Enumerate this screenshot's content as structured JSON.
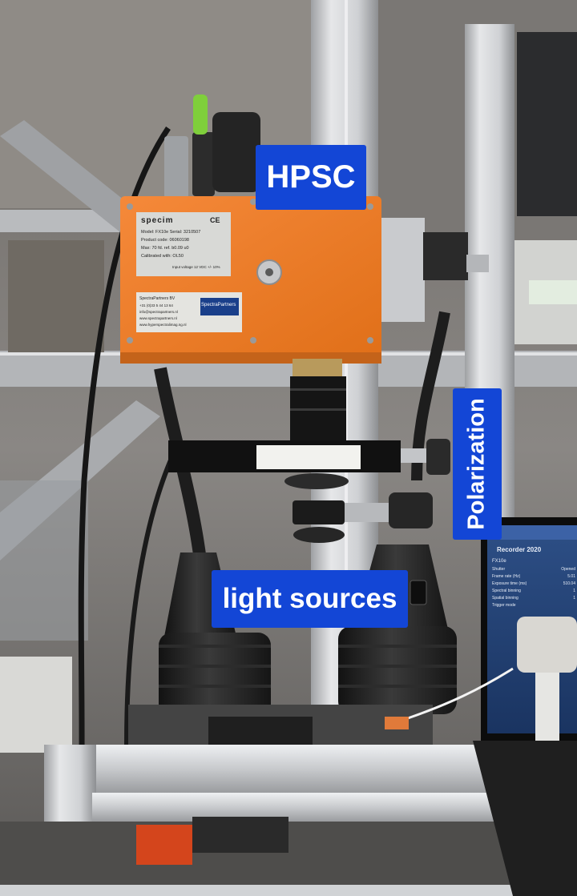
{
  "annotations": {
    "hpsc": "HPSC",
    "polarization": "Polarization",
    "light_sources": "light sources"
  },
  "camera_label": {
    "brand": "specim",
    "ce": "CE",
    "model_line": "Model: FX10e   Serial: 3210507",
    "product_code": "Product code: 06060198",
    "max_line": "Max: 70 fd. ref. b0.09 u0",
    "calibrated": "Calibrated with: OL50",
    "input_voltage": "Input voltage 12 VDC +/- 10%"
  },
  "partner_label": {
    "company": "SpectraPartners BV",
    "phone": "+31 (0)33 5 44 13 64",
    "email": "info@spectrapartners.nl",
    "web1": "www.spectrapartners.nl",
    "web2": "www.hyperspectralimag.ng.nl",
    "logo_text": "SpectraPartners"
  },
  "monitor": {
    "title": "Recorder 2020",
    "group": "FX10e",
    "rows": [
      {
        "key": "Shutter",
        "value": "Opened"
      },
      {
        "key": "Frame rate (Hz)",
        "value": "5.01"
      },
      {
        "key": "Exposure time (ms)",
        "value": "510.04"
      },
      {
        "key": "Spectral binning",
        "value": "1"
      },
      {
        "key": "Spatial binning",
        "value": "1"
      },
      {
        "key": "Trigger mode",
        "value": ""
      }
    ]
  },
  "colors": {
    "tag_blue": "#1346d6",
    "camera_orange": "#f07c25",
    "frame_silver": "#c8cacd"
  }
}
